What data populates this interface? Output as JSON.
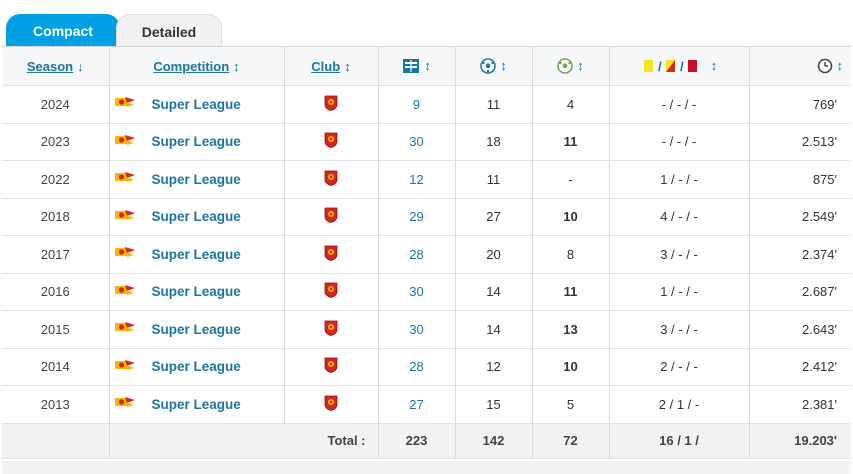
{
  "tabs": {
    "compact": "Compact",
    "detailed": "Detailed"
  },
  "headers": {
    "season": "Season",
    "season_arrow": "↓",
    "competition": "Competition",
    "competition_arrow": "↕",
    "club": "Club",
    "club_arrow": "↕",
    "sort_arrow": "↕",
    "appearances_icon": "appearances-icon",
    "goals_icon": "goals-icon",
    "assists_icon": "assists-icon",
    "cards_icon": "cards-icon",
    "minutes_icon": "minutes-icon",
    "cards_sep": "/"
  },
  "rows": [
    {
      "season": "2024",
      "competition": "Super League",
      "apps": "9",
      "goals": "11",
      "assists": "4",
      "cards": "- / - / -",
      "minutes": "769'"
    },
    {
      "season": "2023",
      "competition": "Super League",
      "apps": "30",
      "goals": "18",
      "assists": "11",
      "cards": "- / - / -",
      "minutes": "2.513'"
    },
    {
      "season": "2022",
      "competition": "Super League",
      "apps": "12",
      "goals": "11",
      "assists": "-",
      "cards": "1 / - / -",
      "minutes": "875'"
    },
    {
      "season": "2018",
      "competition": "Super League",
      "apps": "29",
      "goals": "27",
      "assists": "10",
      "cards": "4 / - / -",
      "minutes": "2.549'"
    },
    {
      "season": "2017",
      "competition": "Super League",
      "apps": "28",
      "goals": "20",
      "assists": "8",
      "cards": "3 / - / -",
      "minutes": "2.374'"
    },
    {
      "season": "2016",
      "competition": "Super League",
      "apps": "30",
      "goals": "14",
      "assists": "11",
      "cards": "1 / - / -",
      "minutes": "2.687'"
    },
    {
      "season": "2015",
      "competition": "Super League",
      "apps": "30",
      "goals": "14",
      "assists": "13",
      "cards": "3 / - / -",
      "minutes": "2.643'"
    },
    {
      "season": "2014",
      "competition": "Super League",
      "apps": "28",
      "goals": "12",
      "assists": "10",
      "cards": "2 / - / -",
      "minutes": "2.412'"
    },
    {
      "season": "2013",
      "competition": "Super League",
      "apps": "27",
      "goals": "15",
      "assists": "5",
      "cards": "2 / 1 / -",
      "minutes": "2.381'"
    }
  ],
  "total": {
    "label": "Total :",
    "apps": "223",
    "goals": "142",
    "assists": "72",
    "cards": "16 / 1 /",
    "minutes": "19.203'"
  },
  "colors": {
    "accent": "#00a1e4",
    "link": "#1d75a3",
    "crest_red": "#d7261e",
    "crest_gold": "#f2b705"
  }
}
